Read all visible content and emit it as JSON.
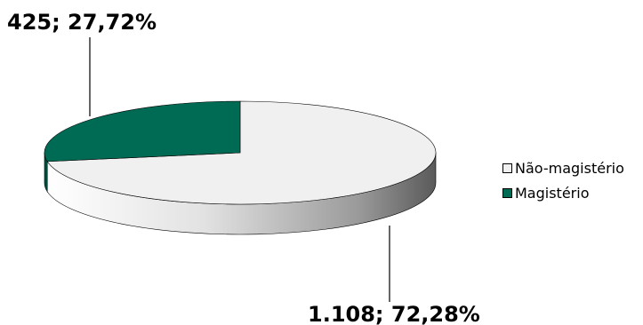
{
  "chart_data": {
    "type": "pie",
    "title": "",
    "series": [
      {
        "name": "Não-magistério",
        "value": 1108,
        "percent": 72.28,
        "label": "1.108; 72,28%",
        "color": "#f0f0f0"
      },
      {
        "name": "Magistério",
        "value": 425,
        "percent": 27.72,
        "label": "425; 27,72%",
        "color": "#006b54"
      }
    ],
    "legend": {
      "position": "right"
    }
  }
}
